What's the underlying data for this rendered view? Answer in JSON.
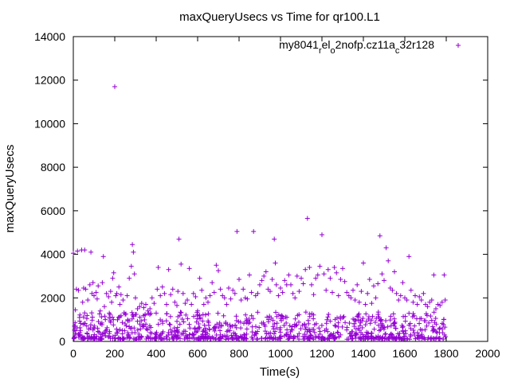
{
  "chart_data": {
    "type": "scatter",
    "title": "maxQueryUsecs vs Time for qr100.L1",
    "xlabel": "Time(s)",
    "ylabel": "maxQueryUsecs",
    "xlim": [
      0,
      2000
    ],
    "ylim": [
      0,
      14000
    ],
    "xticks": [
      0,
      200,
      400,
      600,
      800,
      1000,
      1200,
      1400,
      1600,
      1800,
      2000
    ],
    "yticks": [
      0,
      2000,
      4000,
      6000,
      8000,
      10000,
      12000,
      14000
    ],
    "grid": false,
    "legend_placement": "top-right",
    "marker": "+",
    "series": [
      {
        "name_parts": [
          {
            "text": "my8041",
            "sub": false
          },
          {
            "text": "r",
            "sub": true
          },
          {
            "text": "el",
            "sub": false
          },
          {
            "text": "o",
            "sub": true
          },
          {
            "text": "2nofp.cz11a",
            "sub": false
          },
          {
            "text": "c",
            "sub": true
          },
          {
            "text": "32r128",
            "sub": false
          }
        ],
        "color": "#9400d3",
        "points": [
          [
            0,
            4050
          ],
          [
            5,
            700
          ],
          [
            10,
            1450
          ],
          [
            15,
            2400
          ],
          [
            20,
            4150
          ],
          [
            25,
            2350
          ],
          [
            30,
            1100
          ],
          [
            40,
            4200
          ],
          [
            45,
            1800
          ],
          [
            50,
            2450
          ],
          [
            55,
            4200
          ],
          [
            60,
            2400
          ],
          [
            65,
            1050
          ],
          [
            70,
            1900
          ],
          [
            80,
            2600
          ],
          [
            85,
            4100
          ],
          [
            90,
            2200
          ],
          [
            95,
            2700
          ],
          [
            100,
            2100
          ],
          [
            110,
            2250
          ],
          [
            115,
            1950
          ],
          [
            120,
            2550
          ],
          [
            130,
            1400
          ],
          [
            140,
            2700
          ],
          [
            145,
            3900
          ],
          [
            150,
            1600
          ],
          [
            160,
            2200
          ],
          [
            170,
            2050
          ],
          [
            180,
            2300
          ],
          [
            185,
            1800
          ],
          [
            190,
            2900
          ],
          [
            195,
            3150
          ],
          [
            200,
            11700
          ],
          [
            205,
            2100
          ],
          [
            210,
            2200
          ],
          [
            220,
            2500
          ],
          [
            225,
            1700
          ],
          [
            230,
            2150
          ],
          [
            240,
            1900
          ],
          [
            250,
            1250
          ],
          [
            260,
            2100
          ],
          [
            270,
            2900
          ],
          [
            280,
            3450
          ],
          [
            285,
            4450
          ],
          [
            290,
            4100
          ],
          [
            295,
            3100
          ],
          [
            300,
            2000
          ],
          [
            310,
            1500
          ],
          [
            320,
            1600
          ],
          [
            330,
            1750
          ],
          [
            340,
            1550
          ],
          [
            350,
            1700
          ],
          [
            360,
            1400
          ],
          [
            370,
            1500
          ],
          [
            380,
            2000
          ],
          [
            390,
            1750
          ],
          [
            400,
            1300
          ],
          [
            405,
            2400
          ],
          [
            410,
            3400
          ],
          [
            420,
            2100
          ],
          [
            430,
            2500
          ],
          [
            440,
            2200
          ],
          [
            450,
            1700
          ],
          [
            460,
            3300
          ],
          [
            470,
            2150
          ],
          [
            480,
            2400
          ],
          [
            490,
            1800
          ],
          [
            500,
            1650
          ],
          [
            505,
            2300
          ],
          [
            510,
            4700
          ],
          [
            520,
            3550
          ],
          [
            530,
            2200
          ],
          [
            540,
            1750
          ],
          [
            550,
            1900
          ],
          [
            560,
            3350
          ],
          [
            570,
            1700
          ],
          [
            580,
            2200
          ],
          [
            590,
            2050
          ],
          [
            600,
            1400
          ],
          [
            610,
            2900
          ],
          [
            620,
            2350
          ],
          [
            630,
            1700
          ],
          [
            640,
            2000
          ],
          [
            650,
            1800
          ],
          [
            660,
            2100
          ],
          [
            670,
            2700
          ],
          [
            680,
            2250
          ],
          [
            690,
            3500
          ],
          [
            700,
            3250
          ],
          [
            710,
            2400
          ],
          [
            720,
            2100
          ],
          [
            730,
            2000
          ],
          [
            740,
            1700
          ],
          [
            750,
            2450
          ],
          [
            760,
            1950
          ],
          [
            770,
            2350
          ],
          [
            780,
            2200
          ],
          [
            790,
            5050
          ],
          [
            800,
            2850
          ],
          [
            810,
            1900
          ],
          [
            820,
            2400
          ],
          [
            830,
            2000
          ],
          [
            840,
            1950
          ],
          [
            850,
            3050
          ],
          [
            860,
            2250
          ],
          [
            870,
            5050
          ],
          [
            880,
            2100
          ],
          [
            890,
            2200
          ],
          [
            900,
            2600
          ],
          [
            910,
            2800
          ],
          [
            920,
            3000
          ],
          [
            930,
            3200
          ],
          [
            940,
            2400
          ],
          [
            950,
            2300
          ],
          [
            960,
            2850
          ],
          [
            970,
            4700
          ],
          [
            975,
            3600
          ],
          [
            980,
            2600
          ],
          [
            990,
            2100
          ],
          [
            1000,
            2450
          ],
          [
            1010,
            2250
          ],
          [
            1020,
            2800
          ],
          [
            1030,
            2600
          ],
          [
            1040,
            3050
          ],
          [
            1050,
            2600
          ],
          [
            1060,
            2200
          ],
          [
            1070,
            2000
          ],
          [
            1080,
            3000
          ],
          [
            1090,
            2300
          ],
          [
            1100,
            2900
          ],
          [
            1110,
            2650
          ],
          [
            1120,
            3300
          ],
          [
            1130,
            5650
          ],
          [
            1140,
            3400
          ],
          [
            1150,
            2600
          ],
          [
            1160,
            2150
          ],
          [
            1170,
            2900
          ],
          [
            1180,
            3050
          ],
          [
            1190,
            3450
          ],
          [
            1200,
            4900
          ],
          [
            1210,
            3100
          ],
          [
            1220,
            2350
          ],
          [
            1230,
            3300
          ],
          [
            1240,
            2900
          ],
          [
            1250,
            2250
          ],
          [
            1260,
            3400
          ],
          [
            1270,
            3150
          ],
          [
            1280,
            2100
          ],
          [
            1290,
            2850
          ],
          [
            1300,
            3350
          ],
          [
            1310,
            2750
          ],
          [
            1320,
            2250
          ],
          [
            1330,
            2100
          ],
          [
            1340,
            2000
          ],
          [
            1350,
            2350
          ],
          [
            1360,
            1900
          ],
          [
            1370,
            2600
          ],
          [
            1380,
            1800
          ],
          [
            1390,
            2300
          ],
          [
            1400,
            3600
          ],
          [
            1410,
            1700
          ],
          [
            1420,
            2200
          ],
          [
            1430,
            2850
          ],
          [
            1440,
            1750
          ],
          [
            1450,
            2550
          ],
          [
            1460,
            2000
          ],
          [
            1470,
            2650
          ],
          [
            1480,
            4850
          ],
          [
            1490,
            3100
          ],
          [
            1500,
            2800
          ],
          [
            1510,
            4300
          ],
          [
            1520,
            3700
          ],
          [
            1530,
            2450
          ],
          [
            1540,
            2350
          ],
          [
            1550,
            3200
          ],
          [
            1560,
            2200
          ],
          [
            1570,
            1900
          ],
          [
            1580,
            2100
          ],
          [
            1590,
            2700
          ],
          [
            1600,
            2000
          ],
          [
            1610,
            1900
          ],
          [
            1620,
            3900
          ],
          [
            1630,
            2350
          ],
          [
            1640,
            1800
          ],
          [
            1650,
            2100
          ],
          [
            1660,
            1700
          ],
          [
            1670,
            2050
          ],
          [
            1680,
            1900
          ],
          [
            1690,
            2200
          ],
          [
            1700,
            1700
          ],
          [
            1710,
            1600
          ],
          [
            1720,
            1800
          ],
          [
            1730,
            1900
          ],
          [
            1740,
            3050
          ],
          [
            1750,
            1500
          ],
          [
            1760,
            1700
          ],
          [
            1770,
            1650
          ],
          [
            1780,
            1800
          ],
          [
            1790,
            3050
          ],
          [
            1795,
            1900
          ]
        ],
        "dense_band": {
          "x_range": [
            0,
            1800
          ],
          "y_range": [
            100,
            1350
          ],
          "note_visible": false
        }
      }
    ]
  }
}
